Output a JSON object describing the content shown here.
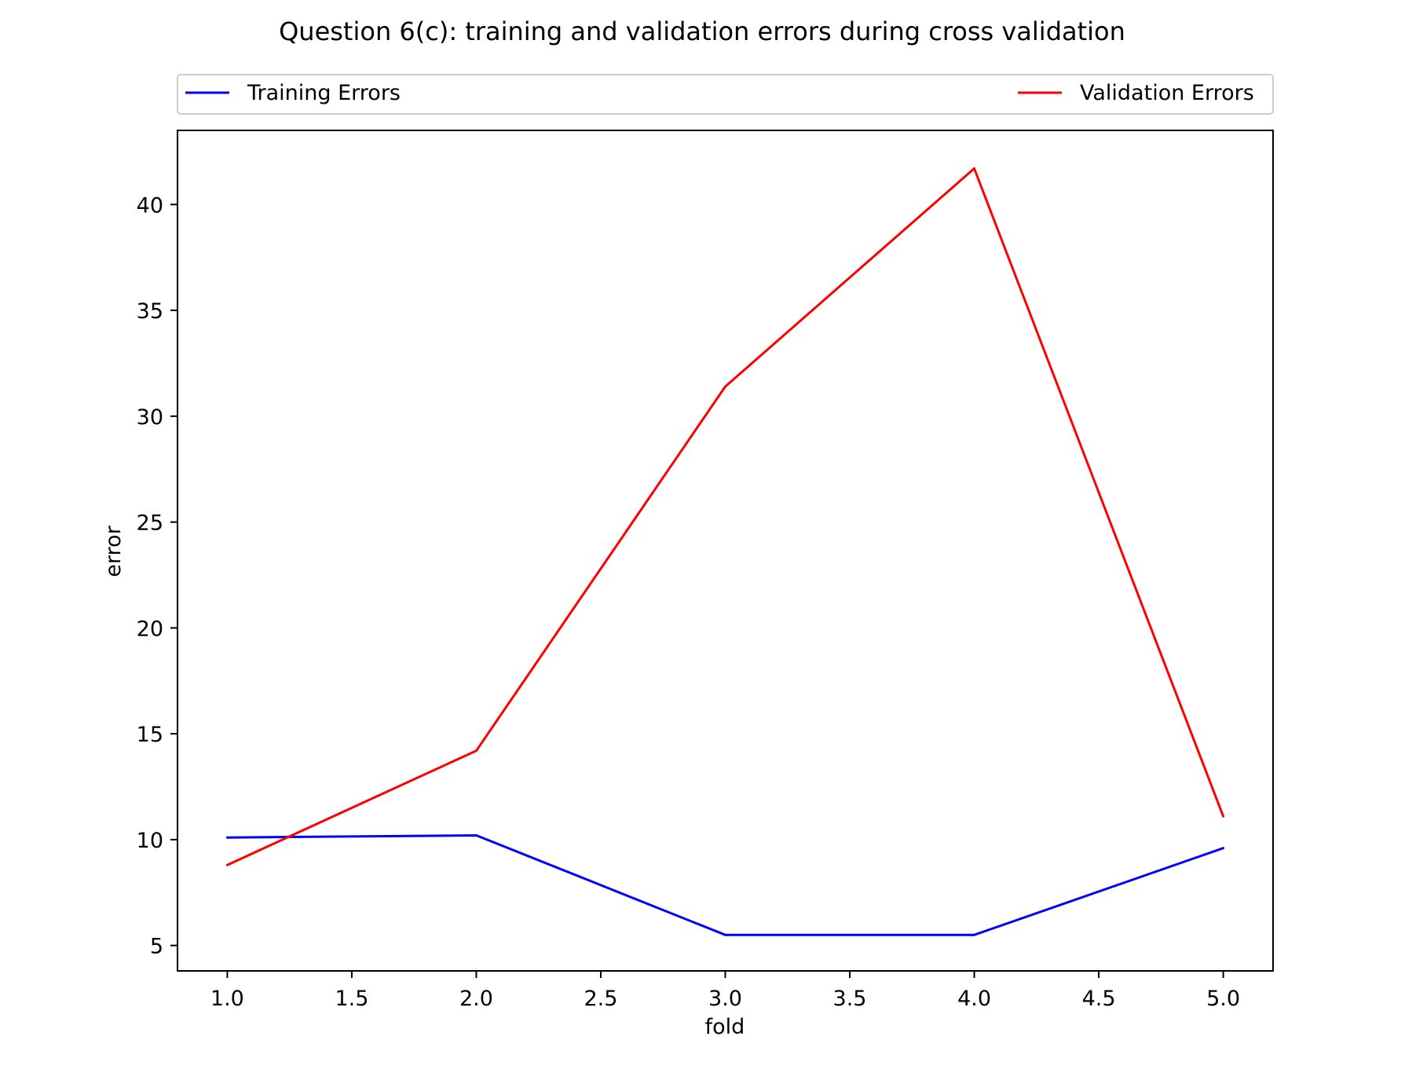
{
  "chart_data": {
    "type": "line",
    "title": "Question 6(c): training and validation errors during cross validation",
    "xlabel": "fold",
    "ylabel": "error",
    "x": [
      1.0,
      2.0,
      3.0,
      4.0,
      5.0
    ],
    "xlim": [
      0.8,
      5.2
    ],
    "ylim": [
      3.8,
      43.5
    ],
    "xticks": [
      1.0,
      1.5,
      2.0,
      2.5,
      3.0,
      3.5,
      4.0,
      4.5,
      5.0
    ],
    "xtick_labels": [
      "1.0",
      "1.5",
      "2.0",
      "2.5",
      "3.0",
      "3.5",
      "4.0",
      "4.5",
      "5.0"
    ],
    "yticks": [
      5,
      10,
      15,
      20,
      25,
      30,
      35,
      40
    ],
    "ytick_labels": [
      "5",
      "10",
      "15",
      "20",
      "25",
      "30",
      "35",
      "40"
    ],
    "grid": false,
    "legend_placement": "top, above plot, spanning width",
    "series": [
      {
        "name": "Training Errors",
        "color": "#0000ff",
        "values": [
          10.1,
          10.2,
          5.5,
          5.5,
          9.6
        ]
      },
      {
        "name": "Validation Errors",
        "color": "#ff0000",
        "values": [
          8.8,
          14.2,
          31.4,
          41.7,
          11.1
        ]
      }
    ]
  }
}
